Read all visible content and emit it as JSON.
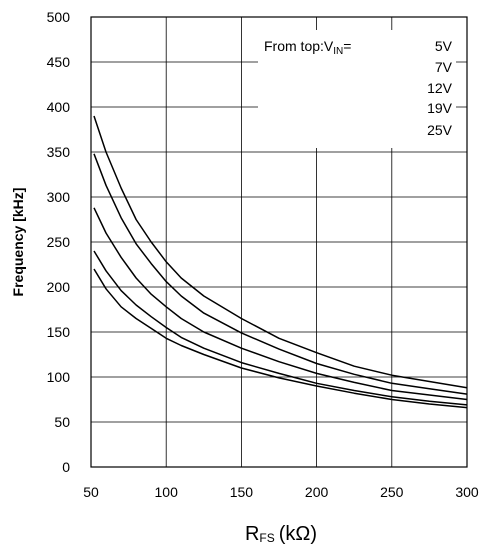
{
  "chart_data": {
    "type": "line",
    "xlabel_main": "R",
    "xlabel_sub": "FS",
    "xlabel_unit": "(kΩ)",
    "ylabel": "Frequency [kHz]",
    "xlim": [
      50,
      300
    ],
    "ylim": [
      0,
      500
    ],
    "x_ticks": [
      "50",
      "100",
      "150",
      "200",
      "250",
      "300"
    ],
    "y_ticks": [
      "0",
      "50",
      "100",
      "150",
      "200",
      "250",
      "300",
      "350",
      "400",
      "450",
      "500"
    ],
    "grid": true,
    "annotation": {
      "prefix": "From top:V",
      "sub": "IN",
      "suffix": "="
    },
    "series_labels": [
      "5V",
      "7V",
      "12V",
      "19V",
      "25V"
    ],
    "x": [
      52,
      60,
      70,
      80,
      90,
      100,
      110,
      125,
      150,
      175,
      200,
      225,
      250,
      275,
      300
    ],
    "series": [
      {
        "name": "5V",
        "values": [
          390,
          350,
          310,
          275,
          250,
          228,
          210,
          190,
          165,
          143,
          127,
          112,
          102,
          95,
          88
        ]
      },
      {
        "name": "7V",
        "values": [
          348,
          313,
          277,
          248,
          226,
          206,
          190,
          171,
          149,
          131,
          115,
          103,
          93,
          87,
          81
        ]
      },
      {
        "name": "12V",
        "values": [
          288,
          260,
          233,
          210,
          192,
          178,
          165,
          150,
          132,
          117,
          104,
          94,
          85,
          80,
          75
        ]
      },
      {
        "name": "19V",
        "values": [
          240,
          218,
          196,
          180,
          167,
          155,
          144,
          132,
          116,
          104,
          93,
          85,
          78,
          73,
          69
        ]
      },
      {
        "name": "25V",
        "values": [
          220,
          198,
          178,
          165,
          154,
          143,
          135,
          125,
          110,
          99,
          90,
          82,
          75,
          70,
          66
        ]
      }
    ]
  }
}
